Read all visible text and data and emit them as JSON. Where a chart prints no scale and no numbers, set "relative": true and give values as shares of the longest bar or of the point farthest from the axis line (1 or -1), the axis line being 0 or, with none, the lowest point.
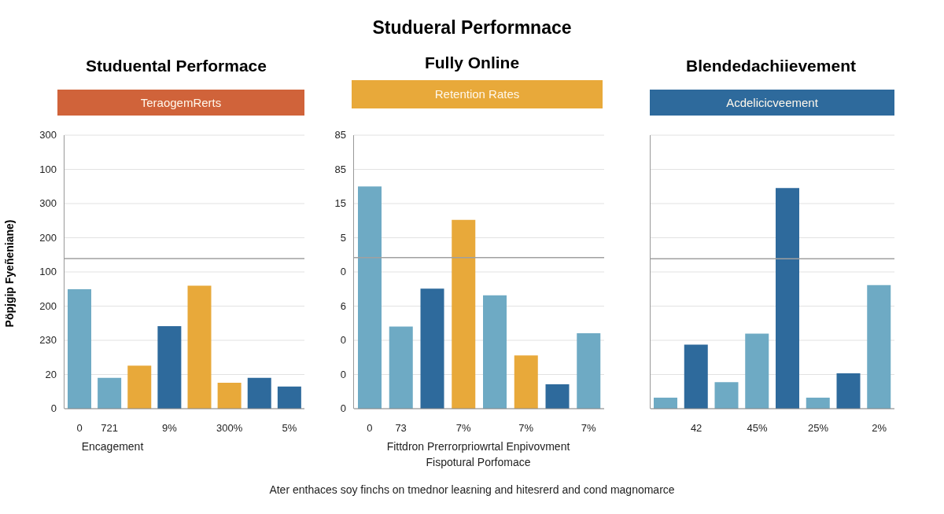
{
  "chart_data": [
    {
      "type": "bar",
      "relative": true,
      "title": "Studuental Performace",
      "subtitle": "TeraogemRerts",
      "xlabel": "Encagement",
      "ylabel": "Pöpjgip Fyeñeniane)",
      "annotations": [
        "0",
        "20",
        "230",
        "200",
        "100",
        "200",
        "300",
        "100",
        "300"
      ],
      "categories": [
        "0",
        "721",
        null,
        "9%",
        null,
        "300%",
        null,
        "5%"
      ],
      "values": [
        0.97,
        0.25,
        0.35,
        0.67,
        1,
        0.21,
        0.25,
        0.18
      ],
      "colors": [
        "#6eaac4",
        "#6eaac4",
        "#e8a93a",
        "#2e6a9c",
        "#e8a93a",
        "#e8a93a",
        "#2e6a9c",
        "#2e6a9c"
      ],
      "ref_lines": [
        {
          "axis": "y",
          "value": 1.22,
          "color": "#a0a0a0"
        }
      ],
      "grid": "y",
      "legend": false
    },
    {
      "type": "bar",
      "relative": true,
      "title": "Fully Online",
      "subtitle": "Retention Rates",
      "xlabel": "Fittdron Prerrorpriowrtal Enpivovment\nFispotural Porfomace",
      "annotations": [
        "0",
        "0",
        "0",
        "6",
        "0",
        "5",
        "15",
        "85",
        "85"
      ],
      "categories": [
        "0",
        "73",
        null,
        "7%",
        null,
        "7%",
        null,
        "7%"
      ],
      "values": [
        1,
        0.37,
        0.54,
        0.85,
        0.51,
        0.24,
        0.11,
        0.34
      ],
      "colors": [
        "#6eaac4",
        "#6eaac4",
        "#2e6a9c",
        "#e8a93a",
        "#6eaac4",
        "#e8a93a",
        "#2e6a9c",
        "#6eaac4"
      ],
      "ref_lines": [
        {
          "axis": "y",
          "value": 0.68,
          "color": "#a0a0a0"
        }
      ],
      "grid": "y",
      "legend": false
    },
    {
      "type": "bar",
      "relative": true,
      "title": "Blendedachiievement",
      "subtitle": "Acdelicicveement",
      "annotations": [
        "Studueral Performnace",
        "Ater enthaces soy finchs on tmednor leaεning and hitesrerd and cond magnomarce"
      ],
      "categories": [
        null,
        "42",
        null,
        "45%",
        null,
        "25%",
        null,
        "2%"
      ],
      "values": [
        0.05,
        0.29,
        0.12,
        0.34,
        1,
        0.05,
        0.16,
        0.56
      ],
      "colors": [
        "#6eaac4",
        "#2e6a9c",
        "#6eaac4",
        "#6eaac4",
        "#2e6a9c",
        "#6eaac4",
        "#2e6a9c",
        "#6eaac4"
      ],
      "ref_lines": [
        {
          "axis": "y",
          "value": 0.68,
          "color": "#a0a0a0"
        }
      ],
      "grid": "y",
      "legend": false
    }
  ]
}
